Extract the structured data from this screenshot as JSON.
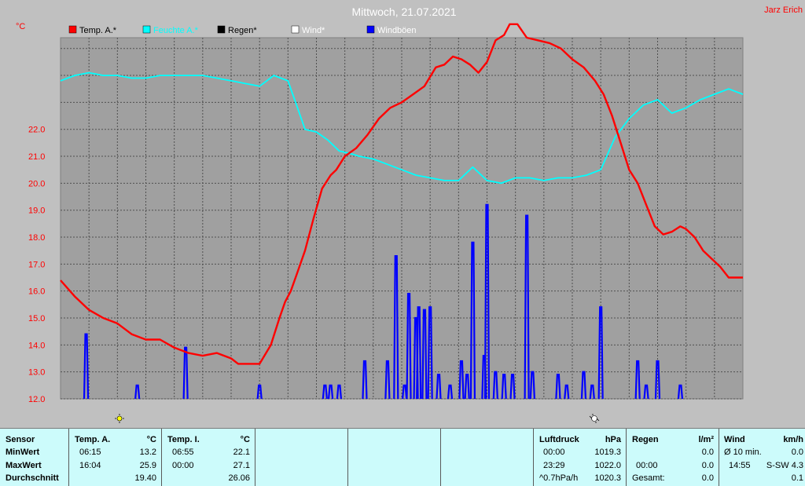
{
  "header": {
    "title": "Mittwoch, 21.07.2021",
    "author": "Jarz Erich",
    "unit": "°C"
  },
  "colors": {
    "background": "#c0c0c0",
    "plot": "#a0a0a0",
    "temp": "#ff0000",
    "feuchte": "#00ffff",
    "regen": "#000000",
    "wind": "#ffffff",
    "windboeen": "#0000ff",
    "table": "#ccfbfb"
  },
  "chart_data": {
    "type": "line",
    "ylim": [
      12.0,
      25.4
    ],
    "xlim": [
      0,
      24
    ],
    "grid": true,
    "yticks": [
      "12.0",
      "13.0",
      "14.0",
      "15.0",
      "16.0",
      "17.0",
      "18.0",
      "19.0",
      "20.0",
      "21.0",
      "22.0"
    ],
    "legend": [
      "Temp. A.*",
      "Feuchte A.*",
      "Regen*",
      "Wind*",
      "Windböen"
    ],
    "series": [
      {
        "name": "Temp. A.*",
        "color": "#ff0000",
        "x": [
          0,
          0.5,
          1,
          1.5,
          2,
          2.5,
          3,
          3.5,
          4,
          4.5,
          5,
          5.5,
          6,
          6.25,
          6.5,
          7,
          7.4,
          7.7,
          7.9,
          8.1,
          8.3,
          8.6,
          8.9,
          9.2,
          9.5,
          9.7,
          10,
          10.4,
          10.8,
          11.2,
          11.6,
          12,
          12.4,
          12.8,
          13.2,
          13.5,
          13.8,
          14.1,
          14.4,
          14.7,
          15,
          15.3,
          15.6,
          15.8,
          16.07,
          16.4,
          16.8,
          17.2,
          17.6,
          18,
          18.4,
          18.8,
          19.1,
          19.4,
          19.7,
          20,
          20.3,
          20.6,
          20.9,
          21.2,
          21.5,
          21.8,
          22,
          22.3,
          22.6,
          22.9,
          23.2,
          23.5,
          24
        ],
        "values": [
          16.4,
          15.8,
          15.3,
          15.0,
          14.8,
          14.4,
          14.2,
          14.2,
          13.9,
          13.7,
          13.6,
          13.7,
          13.5,
          13.3,
          13.3,
          13.3,
          14.0,
          15.0,
          15.6,
          16.0,
          16.6,
          17.5,
          18.7,
          19.8,
          20.3,
          20.5,
          21.0,
          21.3,
          21.8,
          22.4,
          22.8,
          23.0,
          23.3,
          23.6,
          24.3,
          24.4,
          24.7,
          24.6,
          24.4,
          24.1,
          24.5,
          25.3,
          25.5,
          25.9,
          25.9,
          25.4,
          25.3,
          25.2,
          25.0,
          24.6,
          24.3,
          23.8,
          23.3,
          22.5,
          21.5,
          20.5,
          20.0,
          19.2,
          18.4,
          18.1,
          18.2,
          18.4,
          18.3,
          18.0,
          17.5,
          17.2,
          16.9,
          16.5,
          16.5
        ]
      },
      {
        "name": "Feuchte A.*",
        "color": "#00ffff",
        "x": [
          0,
          0.5,
          1,
          1.5,
          2,
          2.5,
          3,
          3.5,
          4,
          5,
          6,
          6.5,
          7,
          7.5,
          8,
          8.3,
          8.6,
          9,
          9.4,
          9.8,
          10.2,
          10.5,
          11,
          11.5,
          12,
          12.5,
          13,
          13.5,
          14,
          14.5,
          15,
          15.5,
          16,
          16.5,
          17,
          17.5,
          18,
          18.5,
          19,
          19.5,
          20,
          20.5,
          21,
          21.5,
          22,
          22.5,
          23,
          23.5,
          24
        ],
        "values": [
          23.8,
          24.0,
          24.1,
          24.0,
          24.0,
          23.9,
          23.9,
          24.0,
          24.0,
          24.0,
          23.8,
          23.7,
          23.6,
          24.0,
          23.8,
          22.9,
          22.0,
          21.9,
          21.6,
          21.2,
          21.1,
          21.0,
          20.9,
          20.7,
          20.5,
          20.3,
          20.2,
          20.1,
          20.1,
          20.6,
          20.1,
          20.0,
          20.2,
          20.2,
          20.1,
          20.2,
          20.2,
          20.3,
          20.5,
          21.7,
          22.4,
          22.9,
          23.1,
          22.6,
          22.8,
          23.1,
          23.3,
          23.5,
          23.3
        ]
      },
      {
        "name": "Windböen",
        "color": "#0000ff",
        "x": [
          0.9,
          2.7,
          4.4,
          7.0,
          9.3,
          9.5,
          9.8,
          10.7,
          11.5,
          11.8,
          12.1,
          12.25,
          12.5,
          12.6,
          12.8,
          13.0,
          13.3,
          13.7,
          14.1,
          14.3,
          14.5,
          14.9,
          15.0,
          15.3,
          15.6,
          15.9,
          16.4,
          16.6,
          17.5,
          17.8,
          18.4,
          18.7,
          19.0,
          20.3,
          20.6,
          21.0,
          21.8
        ],
        "values": [
          14.4,
          12.5,
          13.9,
          12.5,
          12.5,
          12.5,
          12.5,
          13.4,
          13.4,
          17.3,
          12.5,
          15.9,
          15.0,
          15.4,
          15.3,
          15.4,
          12.9,
          12.5,
          13.4,
          12.9,
          17.8,
          13.6,
          19.2,
          13.0,
          12.9,
          12.9,
          18.8,
          13.0,
          12.9,
          12.5,
          13.0,
          12.5,
          15.4,
          13.4,
          12.5,
          13.4,
          12.5
        ]
      }
    ]
  },
  "table": {
    "sensor": {
      "header": "Sensor",
      "min": "MinWert",
      "max": "MaxWert",
      "avg": "Durchschnitt"
    },
    "temp_a": {
      "header": "Temp. A.",
      "unit": "°C",
      "min_time": "06:15",
      "min_val": "13.2",
      "max_time": "16:04",
      "max_val": "25.9",
      "avg": "19.40"
    },
    "temp_i": {
      "header": "Temp. I.",
      "unit": "°C",
      "min_time": "06:55",
      "min_val": "22.1",
      "max_time": "00:00",
      "max_val": "27.1",
      "avg": "26.06"
    },
    "luftdruck": {
      "header": "Luftdruck",
      "unit": "hPa",
      "min_time": "00:00",
      "min_val": "1019.3",
      "max_time": "23:29",
      "max_val": "1022.0",
      "avg_label": "^0.7hPa/h",
      "avg": "1020.3"
    },
    "regen": {
      "header": "Regen",
      "unit": "l/m²",
      "min_val": "0.0",
      "max_time": "00:00",
      "max_val": "0.0",
      "avg_label": "Gesamt:",
      "avg": "0.0"
    },
    "wind": {
      "header": "Wind",
      "unit": "km/h",
      "min_label": "Ø 10 min.",
      "min_val": "0.0",
      "max_time": "14:55",
      "max_val": "S-SW 4.3",
      "avg": "0.1"
    }
  }
}
